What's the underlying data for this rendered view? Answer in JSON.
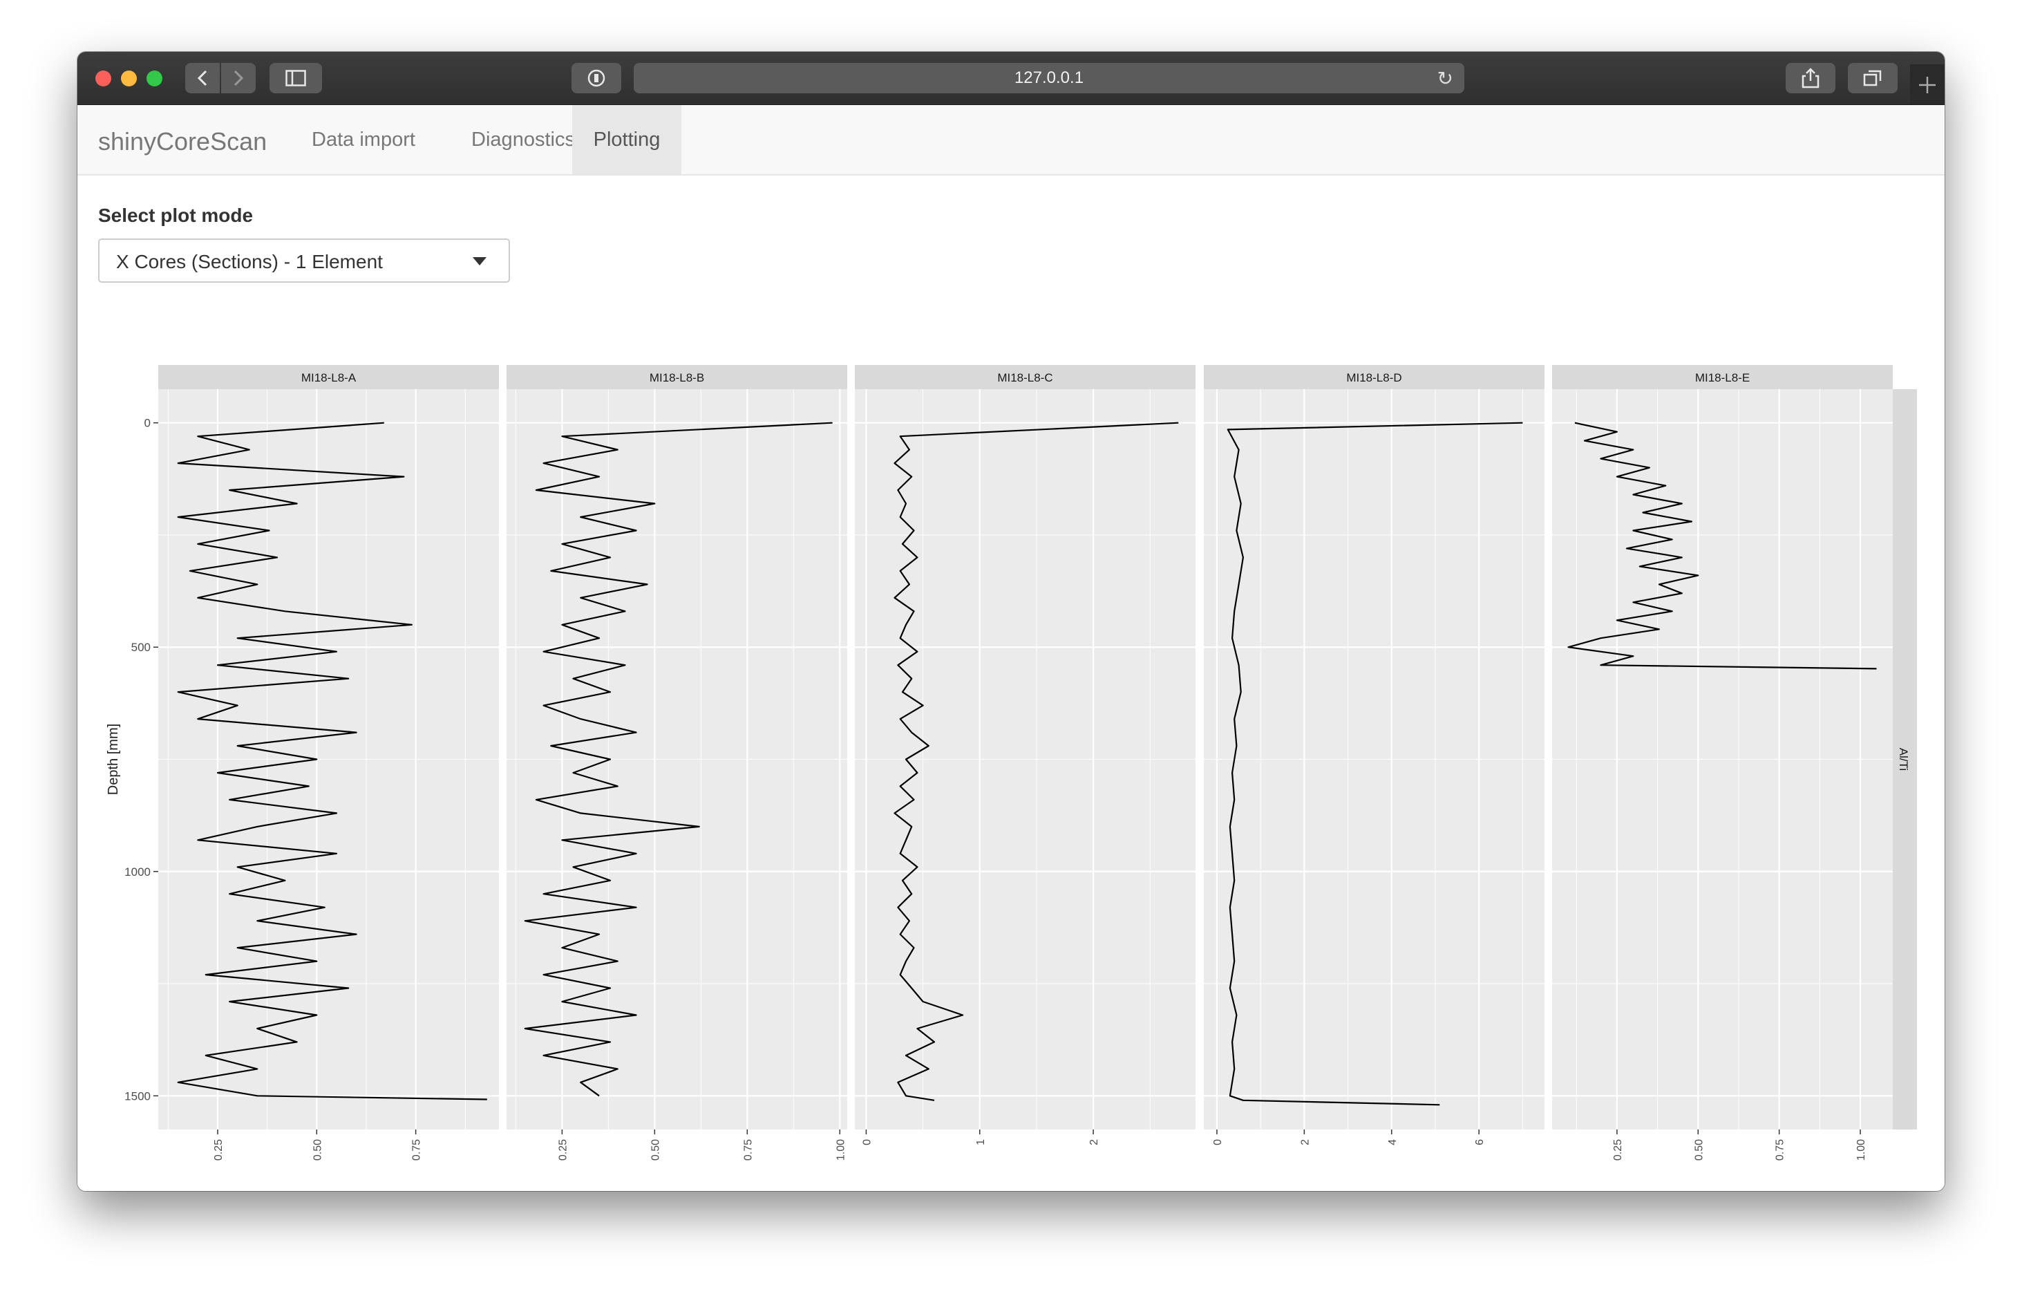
{
  "browser": {
    "url": "127.0.0.1",
    "colors": {
      "close": "#fc605b",
      "minimize": "#fdbc40",
      "zoom": "#34c84a"
    },
    "icons": [
      "back-icon",
      "forward-icon",
      "sidebar-icon",
      "privacy-icon",
      "reload-icon",
      "share-icon",
      "tabs-icon",
      "new-tab-icon"
    ]
  },
  "app": {
    "brand": "shinyCoreScan",
    "tabs": [
      {
        "label": "Data import",
        "active": false
      },
      {
        "label": "Diagnostics",
        "active": false
      },
      {
        "label": "Plotting",
        "active": true
      }
    ]
  },
  "plot_mode": {
    "label": "Select plot mode",
    "selected": "X Cores (Sections) - 1 Element"
  },
  "chart_data": {
    "type": "line",
    "ylabel": "Depth [mm]",
    "ylim": [
      1575,
      -75
    ],
    "yticks": [
      0,
      500,
      1000,
      1500
    ],
    "ytick_labels": [
      "0",
      "500",
      "1000",
      "1500"
    ],
    "strip_right": "Al/Ti",
    "grid": true,
    "panels": [
      {
        "title": "MI18-L8-A",
        "xlim": [
          0.1,
          0.96
        ],
        "xticks": [
          0.25,
          0.5,
          0.75
        ],
        "xtick_labels": [
          "0.25",
          "0.50",
          "0.75"
        ],
        "series": [
          {
            "depth": [
              0,
              30,
              60,
              90,
              120,
              150,
              180,
              210,
              240,
              270,
              300,
              330,
              360,
              390,
              420,
              450,
              480,
              510,
              540,
              570,
              600,
              630,
              660,
              690,
              720,
              750,
              780,
              810,
              840,
              870,
              900,
              930,
              960,
              990,
              1020,
              1050,
              1080,
              1110,
              1140,
              1170,
              1200,
              1230,
              1260,
              1290,
              1320,
              1350,
              1380,
              1410,
              1440,
              1470,
              1500,
              1508
            ],
            "value": [
              0.67,
              0.2,
              0.33,
              0.15,
              0.72,
              0.28,
              0.45,
              0.15,
              0.38,
              0.2,
              0.4,
              0.18,
              0.35,
              0.2,
              0.42,
              0.74,
              0.3,
              0.55,
              0.25,
              0.58,
              0.15,
              0.3,
              0.2,
              0.6,
              0.3,
              0.5,
              0.25,
              0.48,
              0.28,
              0.55,
              0.35,
              0.2,
              0.55,
              0.3,
              0.42,
              0.28,
              0.52,
              0.35,
              0.6,
              0.3,
              0.5,
              0.22,
              0.58,
              0.28,
              0.5,
              0.35,
              0.45,
              0.22,
              0.35,
              0.15,
              0.35,
              0.93
            ]
          }
        ]
      },
      {
        "title": "MI18-L8-B",
        "xlim": [
          0.1,
          1.02
        ],
        "xticks": [
          0.25,
          0.5,
          0.75,
          1.0
        ],
        "xtick_labels": [
          "0.25",
          "0.50",
          "0.75",
          "1.00"
        ],
        "series": [
          {
            "depth": [
              0,
              30,
              60,
              90,
              120,
              150,
              180,
              210,
              240,
              270,
              300,
              330,
              360,
              390,
              420,
              450,
              480,
              510,
              540,
              570,
              600,
              630,
              660,
              690,
              720,
              750,
              780,
              810,
              840,
              870,
              900,
              930,
              960,
              990,
              1020,
              1050,
              1080,
              1110,
              1140,
              1170,
              1200,
              1230,
              1260,
              1290,
              1320,
              1350,
              1380,
              1410,
              1440,
              1470,
              1500
            ],
            "value": [
              0.98,
              0.25,
              0.4,
              0.2,
              0.35,
              0.18,
              0.5,
              0.3,
              0.45,
              0.25,
              0.38,
              0.22,
              0.48,
              0.3,
              0.42,
              0.25,
              0.35,
              0.2,
              0.42,
              0.28,
              0.38,
              0.2,
              0.3,
              0.45,
              0.22,
              0.38,
              0.28,
              0.4,
              0.18,
              0.3,
              0.62,
              0.25,
              0.45,
              0.28,
              0.38,
              0.2,
              0.45,
              0.15,
              0.35,
              0.25,
              0.4,
              0.2,
              0.38,
              0.25,
              0.45,
              0.15,
              0.38,
              0.2,
              0.4,
              0.3,
              0.35
            ]
          }
        ]
      },
      {
        "title": "MI18-L8-C",
        "xlim": [
          -0.1,
          2.9
        ],
        "xticks": [
          0,
          1,
          2
        ],
        "xtick_labels": [
          "0",
          "1",
          "2"
        ],
        "series": [
          {
            "depth": [
              0,
              30,
              60,
              90,
              120,
              150,
              180,
              210,
              240,
              270,
              300,
              330,
              360,
              390,
              420,
              450,
              480,
              510,
              540,
              570,
              600,
              630,
              660,
              690,
              720,
              750,
              780,
              810,
              840,
              870,
              900,
              930,
              960,
              990,
              1020,
              1050,
              1080,
              1110,
              1140,
              1170,
              1200,
              1230,
              1260,
              1290,
              1320,
              1350,
              1380,
              1410,
              1440,
              1470,
              1500,
              1510
            ],
            "value": [
              2.75,
              0.3,
              0.38,
              0.25,
              0.4,
              0.28,
              0.35,
              0.3,
              0.42,
              0.32,
              0.45,
              0.3,
              0.38,
              0.25,
              0.42,
              0.35,
              0.3,
              0.45,
              0.28,
              0.4,
              0.32,
              0.5,
              0.3,
              0.4,
              0.55,
              0.35,
              0.45,
              0.3,
              0.42,
              0.25,
              0.4,
              0.35,
              0.3,
              0.45,
              0.32,
              0.4,
              0.28,
              0.38,
              0.3,
              0.42,
              0.35,
              0.3,
              0.4,
              0.5,
              0.85,
              0.45,
              0.6,
              0.35,
              0.55,
              0.28,
              0.35,
              0.6
            ]
          }
        ]
      },
      {
        "title": "MI18-L8-D",
        "xlim": [
          -0.3,
          7.5
        ],
        "xticks": [
          0,
          2,
          4,
          6
        ],
        "xtick_labels": [
          "0",
          "2",
          "4",
          "6"
        ],
        "series": [
          {
            "depth": [
              0,
              15,
              60,
              120,
              180,
              240,
              300,
              360,
              420,
              480,
              540,
              600,
              660,
              720,
              780,
              840,
              900,
              960,
              1020,
              1080,
              1140,
              1200,
              1260,
              1320,
              1380,
              1440,
              1500,
              1510,
              1520
            ],
            "value": [
              7.0,
              0.25,
              0.5,
              0.4,
              0.55,
              0.45,
              0.6,
              0.5,
              0.4,
              0.35,
              0.5,
              0.55,
              0.4,
              0.45,
              0.35,
              0.4,
              0.3,
              0.35,
              0.4,
              0.3,
              0.35,
              0.4,
              0.3,
              0.45,
              0.35,
              0.4,
              0.3,
              0.6,
              5.1
            ]
          }
        ]
      },
      {
        "title": "MI18-L8-E",
        "xlim": [
          0.05,
          1.1
        ],
        "xticks": [
          0.25,
          0.5,
          0.75,
          1.0
        ],
        "xtick_labels": [
          "0.25",
          "0.50",
          "0.75",
          "1.00"
        ],
        "series": [
          {
            "depth": [
              0,
              20,
              40,
              60,
              80,
              100,
              120,
              140,
              160,
              180,
              200,
              220,
              240,
              260,
              280,
              300,
              320,
              340,
              360,
              380,
              400,
              420,
              440,
              460,
              480,
              500,
              520,
              540,
              548
            ],
            "value": [
              0.12,
              0.25,
              0.15,
              0.3,
              0.2,
              0.35,
              0.25,
              0.4,
              0.3,
              0.45,
              0.33,
              0.48,
              0.3,
              0.42,
              0.28,
              0.45,
              0.32,
              0.5,
              0.38,
              0.45,
              0.3,
              0.42,
              0.25,
              0.38,
              0.2,
              0.1,
              0.3,
              0.2,
              1.05
            ]
          }
        ]
      }
    ]
  }
}
